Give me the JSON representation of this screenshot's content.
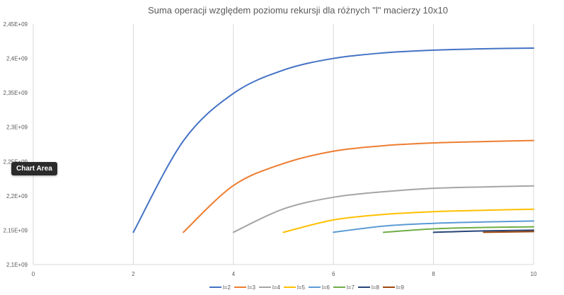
{
  "chart_data": {
    "type": "line",
    "title": "Suma operacji względem poziomu rekursji dla różnych \"l\" macierzy 10x10",
    "xlabel": "",
    "ylabel": "",
    "xlim": [
      0,
      10
    ],
    "ylim": [
      2100000000,
      2450000000
    ],
    "x_ticks": [
      "0",
      "2",
      "4",
      "6",
      "8",
      "10"
    ],
    "y_ticks": [
      "2,1E+09",
      "2,15E+09",
      "2,2E+09",
      "2,25E+09",
      "2,3E+09",
      "2,35E+09",
      "2,4E+09",
      "2,45E+09"
    ],
    "grid": {
      "vertical": true,
      "horizontal": false
    },
    "legend_position": "bottom",
    "series": [
      {
        "name": "l=2",
        "color": "#4472C4",
        "x": [
          2,
          3,
          4,
          5,
          6,
          7,
          8,
          9,
          10
        ],
        "y": [
          2147000000,
          2280000000,
          2349000000,
          2383000000,
          2400000000,
          2408000000,
          2412000000,
          2414000000,
          2415000000
        ]
      },
      {
        "name": "l=3",
        "color": "#ED7D31",
        "x": [
          3,
          4,
          5,
          6,
          7,
          8,
          9,
          10
        ],
        "y": [
          2147000000,
          2215000000,
          2247000000,
          2265000000,
          2273000000,
          2277000000,
          2279000000,
          2280500000
        ]
      },
      {
        "name": "l=4",
        "color": "#A5A5A5",
        "x": [
          4,
          5,
          6,
          7,
          8,
          9,
          10
        ],
        "y": [
          2147000000,
          2181000000,
          2198000000,
          2206000000,
          2211000000,
          2213000000,
          2214500000
        ]
      },
      {
        "name": "l=5",
        "color": "#FFC000",
        "x": [
          5,
          6,
          7,
          8,
          9,
          10
        ],
        "y": [
          2147000000,
          2165000000,
          2173000000,
          2177000000,
          2179000000,
          2180500000
        ]
      },
      {
        "name": "l=6",
        "color": "#5B9BD5",
        "x": [
          6,
          7,
          8,
          9,
          10
        ],
        "y": [
          2147000000,
          2156000000,
          2160000000,
          2162000000,
          2163500000
        ]
      },
      {
        "name": "l=7",
        "color": "#70AD47",
        "x": [
          7,
          8,
          9,
          10
        ],
        "y": [
          2147000000,
          2152000000,
          2154000000,
          2155000000
        ]
      },
      {
        "name": "l=8",
        "color": "#264478",
        "x": [
          8,
          9,
          10
        ],
        "y": [
          2147000000,
          2149000000,
          2150000000
        ]
      },
      {
        "name": "l=9",
        "color": "#9E480E",
        "x": [
          9,
          10
        ],
        "y": [
          2147000000,
          2148000000
        ]
      }
    ]
  },
  "tooltip": {
    "label": "Chart Area"
  }
}
